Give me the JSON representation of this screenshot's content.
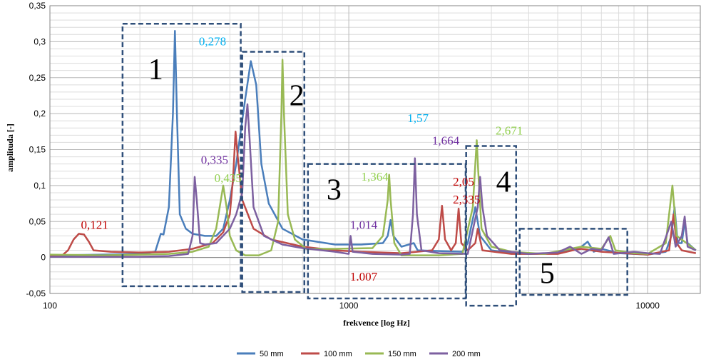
{
  "chart_data": {
    "type": "line",
    "xlabel": "frekvence [log Hz]",
    "ylabel": "amplituda  [-]",
    "xscale": "log",
    "xlim": [
      100,
      15000
    ],
    "ylim": [
      -0.05,
      0.35
    ],
    "x_ticks": [
      {
        "value": 100,
        "label": "100"
      },
      {
        "value": 1000,
        "label": "1000"
      },
      {
        "value": 10000,
        "label": "10000"
      }
    ],
    "y_ticks": [
      {
        "value": -0.05,
        "label": "-0,05"
      },
      {
        "value": 0,
        "label": "0"
      },
      {
        "value": 0.05,
        "label": "0,05"
      },
      {
        "value": 0.1,
        "label": "0,1"
      },
      {
        "value": 0.15,
        "label": "0,15"
      },
      {
        "value": 0.2,
        "label": "0,2"
      },
      {
        "value": 0.25,
        "label": "0,25"
      },
      {
        "value": 0.3,
        "label": "0,3"
      },
      {
        "value": 0.35,
        "label": "0,35"
      }
    ],
    "grid": true,
    "legend_position": "bottom",
    "series": [
      {
        "name": "50 mm",
        "color": "#4a7ebb",
        "points": [
          [
            100,
            0.003
          ],
          [
            150,
            0.004
          ],
          [
            200,
            0.005
          ],
          [
            225,
            0.008
          ],
          [
            235,
            0.033
          ],
          [
            240,
            0.032
          ],
          [
            250,
            0.07
          ],
          [
            258,
            0.2
          ],
          [
            262,
            0.315
          ],
          [
            266,
            0.2
          ],
          [
            272,
            0.06
          ],
          [
            285,
            0.04
          ],
          [
            300,
            0.033
          ],
          [
            330,
            0.03
          ],
          [
            360,
            0.03
          ],
          [
            380,
            0.04
          ],
          [
            400,
            0.08
          ],
          [
            420,
            0.13
          ],
          [
            450,
            0.22
          ],
          [
            470,
            0.273
          ],
          [
            490,
            0.24
          ],
          [
            510,
            0.13
          ],
          [
            540,
            0.075
          ],
          [
            600,
            0.04
          ],
          [
            700,
            0.025
          ],
          [
            900,
            0.018
          ],
          [
            1100,
            0.018
          ],
          [
            1300,
            0.02
          ],
          [
            1350,
            0.03
          ],
          [
            1380,
            0.052
          ],
          [
            1410,
            0.03
          ],
          [
            1500,
            0.015
          ],
          [
            1650,
            0.02
          ],
          [
            1700,
            0.01
          ],
          [
            2000,
            0.009
          ],
          [
            2400,
            0.008
          ],
          [
            2500,
            0.02
          ],
          [
            2650,
            0.07
          ],
          [
            2750,
            0.03
          ],
          [
            3000,
            0.01
          ],
          [
            3500,
            0.006
          ],
          [
            4000,
            0.005
          ],
          [
            5000,
            0.006
          ],
          [
            6000,
            0.015
          ],
          [
            6300,
            0.022
          ],
          [
            6600,
            0.008
          ],
          [
            7000,
            0.012
          ],
          [
            8000,
            0.006
          ],
          [
            10000,
            0.004
          ],
          [
            11500,
            0.008
          ],
          [
            12000,
            0.03
          ],
          [
            12300,
            0.07
          ],
          [
            12600,
            0.02
          ],
          [
            13000,
            0.02
          ],
          [
            13300,
            0.05
          ],
          [
            13600,
            0.02
          ],
          [
            14500,
            0.01
          ]
        ]
      },
      {
        "name": "100 mm",
        "color": "#be4b48",
        "points": [
          [
            100,
            0.002
          ],
          [
            110,
            0.003
          ],
          [
            115,
            0.01
          ],
          [
            120,
            0.025
          ],
          [
            125,
            0.033
          ],
          [
            130,
            0.032
          ],
          [
            135,
            0.022
          ],
          [
            140,
            0.01
          ],
          [
            160,
            0.008
          ],
          [
            200,
            0.007
          ],
          [
            250,
            0.008
          ],
          [
            300,
            0.012
          ],
          [
            350,
            0.02
          ],
          [
            380,
            0.035
          ],
          [
            400,
            0.06
          ],
          [
            410,
            0.11
          ],
          [
            418,
            0.175
          ],
          [
            425,
            0.14
          ],
          [
            440,
            0.08
          ],
          [
            480,
            0.04
          ],
          [
            550,
            0.025
          ],
          [
            700,
            0.015
          ],
          [
            900,
            0.01
          ],
          [
            1100,
            0.008
          ],
          [
            1500,
            0.006
          ],
          [
            1900,
            0.01
          ],
          [
            2000,
            0.025
          ],
          [
            2050,
            0.072
          ],
          [
            2100,
            0.025
          ],
          [
            2200,
            0.01
          ],
          [
            2280,
            0.02
          ],
          [
            2330,
            0.068
          ],
          [
            2380,
            0.02
          ],
          [
            2500,
            0.01
          ],
          [
            2650,
            0.02
          ],
          [
            2700,
            0.04
          ],
          [
            2800,
            0.01
          ],
          [
            3500,
            0.005
          ],
          [
            5000,
            0.005
          ],
          [
            5600,
            0.01
          ],
          [
            6000,
            0.012
          ],
          [
            7000,
            0.008
          ],
          [
            10000,
            0.004
          ],
          [
            11800,
            0.01
          ],
          [
            12200,
            0.06
          ],
          [
            12500,
            0.02
          ],
          [
            13000,
            0.01
          ],
          [
            14500,
            0.006
          ]
        ]
      },
      {
        "name": "150 mm",
        "color": "#98b954",
        "points": [
          [
            100,
            0.004
          ],
          [
            150,
            0.003
          ],
          [
            200,
            0.004
          ],
          [
            250,
            0.005
          ],
          [
            300,
            0.008
          ],
          [
            340,
            0.015
          ],
          [
            360,
            0.04
          ],
          [
            370,
            0.07
          ],
          [
            380,
            0.1
          ],
          [
            390,
            0.07
          ],
          [
            400,
            0.03
          ],
          [
            420,
            0.01
          ],
          [
            450,
            0.003
          ],
          [
            500,
            0.003
          ],
          [
            550,
            0.01
          ],
          [
            580,
            0.05
          ],
          [
            595,
            0.2
          ],
          [
            600,
            0.275
          ],
          [
            607,
            0.2
          ],
          [
            625,
            0.06
          ],
          [
            660,
            0.025
          ],
          [
            720,
            0.012
          ],
          [
            900,
            0.012
          ],
          [
            1200,
            0.013
          ],
          [
            1300,
            0.03
          ],
          [
            1350,
            0.08
          ],
          [
            1365,
            0.115
          ],
          [
            1380,
            0.08
          ],
          [
            1420,
            0.02
          ],
          [
            1500,
            0.003
          ],
          [
            2000,
            0.003
          ],
          [
            2400,
            0.005
          ],
          [
            2600,
            0.07
          ],
          [
            2650,
            0.13
          ],
          [
            2680,
            0.163
          ],
          [
            2710,
            0.12
          ],
          [
            2780,
            0.04
          ],
          [
            3000,
            0.015
          ],
          [
            3500,
            0.008
          ],
          [
            4500,
            0.005
          ],
          [
            5500,
            0.012
          ],
          [
            6000,
            0.015
          ],
          [
            7000,
            0.012
          ],
          [
            7500,
            0.03
          ],
          [
            7800,
            0.01
          ],
          [
            9000,
            0.006
          ],
          [
            10000,
            0.005
          ],
          [
            11500,
            0.02
          ],
          [
            12100,
            0.1
          ],
          [
            12500,
            0.03
          ],
          [
            13500,
            0.02
          ],
          [
            14500,
            0.01
          ]
        ]
      },
      {
        "name": "200 mm",
        "color": "#7d60a0",
        "points": [
          [
            100,
            0.001
          ],
          [
            150,
            0.001
          ],
          [
            200,
            0.001
          ],
          [
            250,
            0.002
          ],
          [
            290,
            0.005
          ],
          [
            300,
            0.03
          ],
          [
            305,
            0.112
          ],
          [
            310,
            0.08
          ],
          [
            318,
            0.02
          ],
          [
            330,
            0.018
          ],
          [
            360,
            0.02
          ],
          [
            400,
            0.04
          ],
          [
            420,
            0.06
          ],
          [
            440,
            0.09
          ],
          [
            450,
            0.18
          ],
          [
            458,
            0.213
          ],
          [
            465,
            0.17
          ],
          [
            480,
            0.07
          ],
          [
            520,
            0.03
          ],
          [
            600,
            0.018
          ],
          [
            700,
            0.013
          ],
          [
            900,
            0.008
          ],
          [
            1000,
            0.005
          ],
          [
            1014,
            0.03
          ],
          [
            1030,
            0.008
          ],
          [
            1200,
            0.005
          ],
          [
            1500,
            0.004
          ],
          [
            1600,
            0.005
          ],
          [
            1640,
            0.06
          ],
          [
            1664,
            0.138
          ],
          [
            1690,
            0.06
          ],
          [
            1750,
            0.01
          ],
          [
            2000,
            0.006
          ],
          [
            2500,
            0.005
          ],
          [
            2700,
            0.07
          ],
          [
            2750,
            0.112
          ],
          [
            2800,
            0.07
          ],
          [
            2900,
            0.03
          ],
          [
            3200,
            0.01
          ],
          [
            4000,
            0.005
          ],
          [
            5000,
            0.007
          ],
          [
            5500,
            0.015
          ],
          [
            6000,
            0.005
          ],
          [
            6500,
            0.012
          ],
          [
            7000,
            0.01
          ],
          [
            7400,
            0.028
          ],
          [
            7700,
            0.005
          ],
          [
            9000,
            0.008
          ],
          [
            10000,
            0.006
          ],
          [
            11000,
            0.005
          ],
          [
            12000,
            0.05
          ],
          [
            12400,
            0.015
          ],
          [
            13000,
            0.03
          ],
          [
            13300,
            0.057
          ],
          [
            13600,
            0.015
          ],
          [
            14500,
            0.01
          ]
        ]
      }
    ],
    "annotations": [
      {
        "text": "0,121",
        "x": 127,
        "y": 0.04,
        "color": "#c00000"
      },
      {
        "text": "0,278",
        "x": 315,
        "y": 0.295,
        "color": "#00b0f0"
      },
      {
        "text": "0,335",
        "x": 320,
        "y": 0.13,
        "color": "#7030a0"
      },
      {
        "text": "0,435",
        "x": 355,
        "y": 0.105,
        "color": "#92d050"
      },
      {
        "text": "1,57",
        "x": 1570,
        "y": 0.188,
        "color": "#00b0f0"
      },
      {
        "text": "1,664",
        "x": 1900,
        "y": 0.157,
        "color": "#7030a0"
      },
      {
        "text": "2,671",
        "x": 3100,
        "y": 0.171,
        "color": "#92d050"
      },
      {
        "text": "1,364",
        "x": 1100,
        "y": 0.107,
        "color": "#92d050"
      },
      {
        "text": "2,05",
        "x": 2230,
        "y": 0.1,
        "color": "#c00000"
      },
      {
        "text": "2,335",
        "x": 2230,
        "y": 0.075,
        "color": "#c00000"
      },
      {
        "text": "1,014",
        "x": 1010,
        "y": 0.04,
        "color": "#7030a0"
      },
      {
        "text": "1.007",
        "x": 1010,
        "y": -0.032,
        "color": "#c00000"
      }
    ],
    "regions": [
      {
        "label": "1",
        "x_range": [
          175,
          435
        ],
        "y_range": [
          -0.04,
          0.325
        ]
      },
      {
        "label": "2",
        "x_range": [
          440,
          710
        ],
        "y_range": [
          -0.048,
          0.286
        ]
      },
      {
        "label": "3",
        "x_range": [
          730,
          2460
        ],
        "y_range": [
          -0.057,
          0.13
        ]
      },
      {
        "label": "4",
        "x_range": [
          2470,
          3630
        ],
        "y_range": [
          -0.067,
          0.155
        ]
      },
      {
        "label": "5",
        "x_range": [
          3730,
          8550
        ],
        "y_range": [
          -0.052,
          0.04
        ]
      }
    ]
  }
}
